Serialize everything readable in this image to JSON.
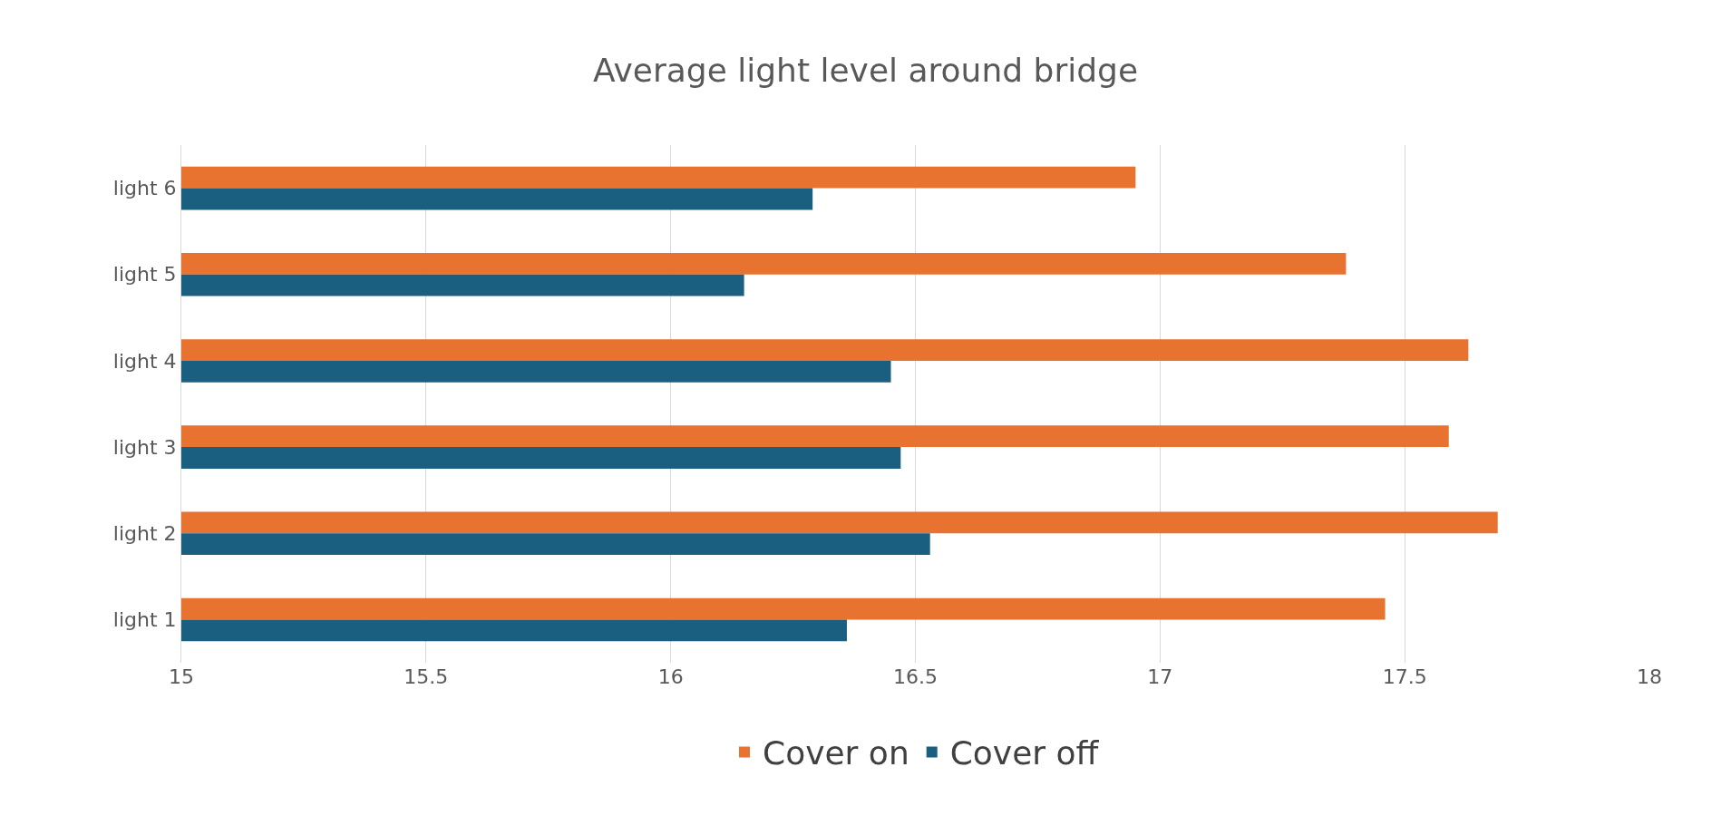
{
  "chart_data": {
    "type": "bar",
    "orientation": "horizontal",
    "title": "Average light level around bridge",
    "categories": [
      "light 6",
      "light 5",
      "light 4",
      "light 3",
      "light 2",
      "light 1"
    ],
    "series": [
      {
        "name": "Cover on",
        "color": "#e8722f",
        "values": [
          16.95,
          17.38,
          17.63,
          17.59,
          17.69,
          17.46
        ]
      },
      {
        "name": "Cover off",
        "color": "#1a5f80",
        "values": [
          16.29,
          16.15,
          16.45,
          16.47,
          16.53,
          16.36
        ]
      }
    ],
    "xlim": [
      15,
      18
    ],
    "xticks": [
      15,
      15.5,
      16,
      16.5,
      17,
      17.5,
      18
    ],
    "grid": "x",
    "legend": "bottom"
  }
}
